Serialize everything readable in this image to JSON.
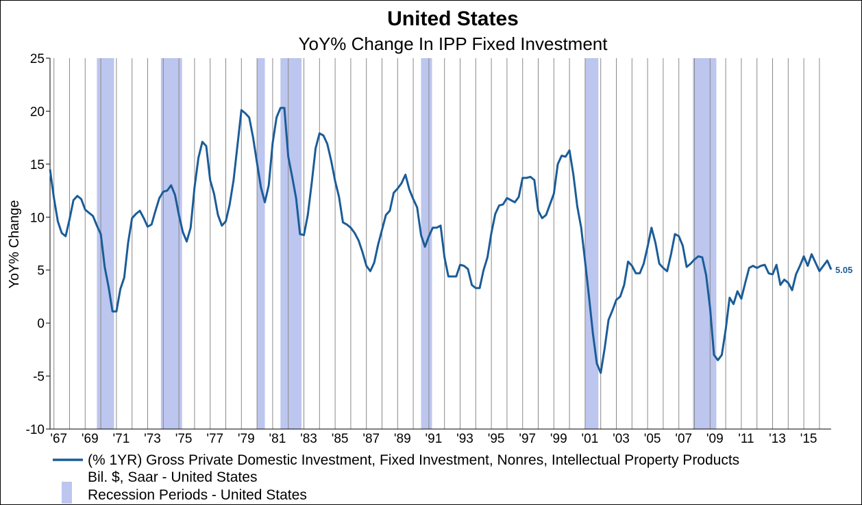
{
  "chart_data": {
    "type": "line",
    "title": "United States",
    "subtitle": "YoY% Change In IPP Fixed Investment",
    "ylabel": "YoY% Change",
    "xlabel": "",
    "ylim": [
      -10,
      25
    ],
    "xlim": [
      1966.75,
      2016.75
    ],
    "yticks": [
      -10,
      -5,
      0,
      5,
      10,
      15,
      20,
      25
    ],
    "xtick_labels": [
      "'67",
      "'69",
      "'71",
      "'73",
      "'75",
      "'77",
      "'79",
      "'81",
      "'83",
      "'85",
      "'87",
      "'89",
      "'91",
      "'93",
      "'95",
      "'97",
      "'99",
      "'01",
      "'03",
      "'05",
      "'07",
      "'09",
      "'11",
      "'13",
      "'15"
    ],
    "grid": "vertical",
    "legend_position": "bottom",
    "colors": {
      "series": "#1b5c98",
      "recession": "#bcc6ee",
      "grid": "#888888"
    },
    "series": [
      {
        "name": "(% 1YR) Gross Private Domestic Investment, Fixed Investment, Nonres, Intellectual Property Products",
        "name_line2": "Bil. $, Saar - United States",
        "end_value_label": "5.05",
        "points": [
          [
            1966.75,
            14.5
          ],
          [
            1967.0,
            11.8
          ],
          [
            1967.25,
            9.6
          ],
          [
            1967.5,
            8.5
          ],
          [
            1967.75,
            8.2
          ],
          [
            1968.0,
            9.8
          ],
          [
            1968.25,
            11.6
          ],
          [
            1968.5,
            12.0
          ],
          [
            1968.75,
            11.7
          ],
          [
            1969.0,
            10.7
          ],
          [
            1969.25,
            10.4
          ],
          [
            1969.5,
            10.1
          ],
          [
            1969.75,
            9.2
          ],
          [
            1970.0,
            8.4
          ],
          [
            1970.25,
            5.3
          ],
          [
            1970.5,
            3.4
          ],
          [
            1970.75,
            1.1
          ],
          [
            1971.0,
            1.1
          ],
          [
            1971.25,
            3.2
          ],
          [
            1971.5,
            4.3
          ],
          [
            1971.75,
            7.6
          ],
          [
            1972.0,
            9.9
          ],
          [
            1972.25,
            10.3
          ],
          [
            1972.5,
            10.6
          ],
          [
            1972.75,
            9.9
          ],
          [
            1973.0,
            9.1
          ],
          [
            1973.25,
            9.3
          ],
          [
            1973.5,
            10.6
          ],
          [
            1973.75,
            11.8
          ],
          [
            1974.0,
            12.4
          ],
          [
            1974.25,
            12.5
          ],
          [
            1974.5,
            13.0
          ],
          [
            1974.75,
            12.1
          ],
          [
            1975.0,
            10.2
          ],
          [
            1975.25,
            8.6
          ],
          [
            1975.5,
            7.7
          ],
          [
            1975.75,
            9.0
          ],
          [
            1976.0,
            12.8
          ],
          [
            1976.25,
            15.6
          ],
          [
            1976.5,
            17.1
          ],
          [
            1976.75,
            16.7
          ],
          [
            1977.0,
            13.5
          ],
          [
            1977.25,
            12.2
          ],
          [
            1977.5,
            10.2
          ],
          [
            1977.75,
            9.2
          ],
          [
            1978.0,
            9.6
          ],
          [
            1978.25,
            11.2
          ],
          [
            1978.5,
            13.5
          ],
          [
            1978.75,
            16.8
          ],
          [
            1979.0,
            20.1
          ],
          [
            1979.25,
            19.8
          ],
          [
            1979.5,
            19.4
          ],
          [
            1979.75,
            17.5
          ],
          [
            1980.0,
            15.1
          ],
          [
            1980.25,
            12.8
          ],
          [
            1980.5,
            11.4
          ],
          [
            1980.75,
            13.0
          ],
          [
            1981.0,
            17.0
          ],
          [
            1981.25,
            19.4
          ],
          [
            1981.5,
            20.3
          ],
          [
            1981.75,
            20.3
          ],
          [
            1982.0,
            15.7
          ],
          [
            1982.25,
            13.8
          ],
          [
            1982.5,
            11.8
          ],
          [
            1982.75,
            8.4
          ],
          [
            1983.0,
            8.3
          ],
          [
            1983.25,
            10.2
          ],
          [
            1983.5,
            13.2
          ],
          [
            1983.75,
            16.5
          ],
          [
            1984.0,
            17.9
          ],
          [
            1984.25,
            17.7
          ],
          [
            1984.5,
            16.9
          ],
          [
            1984.75,
            15.3
          ],
          [
            1985.0,
            13.4
          ],
          [
            1985.25,
            11.9
          ],
          [
            1985.5,
            9.5
          ],
          [
            1985.75,
            9.3
          ],
          [
            1986.0,
            9.0
          ],
          [
            1986.25,
            8.5
          ],
          [
            1986.5,
            7.8
          ],
          [
            1986.75,
            6.7
          ],
          [
            1987.0,
            5.4
          ],
          [
            1987.25,
            4.9
          ],
          [
            1987.5,
            5.7
          ],
          [
            1987.75,
            7.4
          ],
          [
            1988.0,
            8.8
          ],
          [
            1988.25,
            10.2
          ],
          [
            1988.5,
            10.6
          ],
          [
            1988.75,
            12.3
          ],
          [
            1989.0,
            12.7
          ],
          [
            1989.25,
            13.2
          ],
          [
            1989.5,
            14.0
          ],
          [
            1989.75,
            12.6
          ],
          [
            1990.0,
            11.7
          ],
          [
            1990.25,
            10.9
          ],
          [
            1990.5,
            8.3
          ],
          [
            1990.75,
            7.2
          ],
          [
            1991.0,
            8.2
          ],
          [
            1991.25,
            9.0
          ],
          [
            1991.5,
            9.0
          ],
          [
            1991.75,
            9.2
          ],
          [
            1992.0,
            6.2
          ],
          [
            1992.25,
            4.4
          ],
          [
            1992.5,
            4.4
          ],
          [
            1992.75,
            4.4
          ],
          [
            1993.0,
            5.5
          ],
          [
            1993.25,
            5.4
          ],
          [
            1993.5,
            5.1
          ],
          [
            1993.75,
            3.6
          ],
          [
            1994.0,
            3.3
          ],
          [
            1994.25,
            3.3
          ],
          [
            1994.5,
            5.0
          ],
          [
            1994.75,
            6.2
          ],
          [
            1995.0,
            8.5
          ],
          [
            1995.25,
            10.3
          ],
          [
            1995.5,
            11.1
          ],
          [
            1995.75,
            11.2
          ],
          [
            1996.0,
            11.8
          ],
          [
            1996.25,
            11.6
          ],
          [
            1996.5,
            11.4
          ],
          [
            1996.75,
            11.9
          ],
          [
            1997.0,
            13.7
          ],
          [
            1997.25,
            13.7
          ],
          [
            1997.5,
            13.8
          ],
          [
            1997.75,
            13.5
          ],
          [
            1998.0,
            10.6
          ],
          [
            1998.25,
            9.9
          ],
          [
            1998.5,
            10.2
          ],
          [
            1998.75,
            11.2
          ],
          [
            1999.0,
            12.2
          ],
          [
            1999.25,
            15.0
          ],
          [
            1999.5,
            15.8
          ],
          [
            1999.75,
            15.7
          ],
          [
            2000.0,
            16.3
          ],
          [
            2000.25,
            14.0
          ],
          [
            2000.5,
            11.0
          ],
          [
            2000.75,
            9.0
          ],
          [
            2001.0,
            5.8
          ],
          [
            2001.25,
            2.5
          ],
          [
            2001.5,
            -1.0
          ],
          [
            2001.75,
            -3.8
          ],
          [
            2002.0,
            -4.7
          ],
          [
            2002.25,
            -2.4
          ],
          [
            2002.5,
            0.3
          ],
          [
            2002.75,
            1.2
          ],
          [
            2003.0,
            2.2
          ],
          [
            2003.25,
            2.5
          ],
          [
            2003.5,
            3.6
          ],
          [
            2003.75,
            5.8
          ],
          [
            2004.0,
            5.4
          ],
          [
            2004.25,
            4.7
          ],
          [
            2004.5,
            4.7
          ],
          [
            2004.75,
            5.6
          ],
          [
            2005.0,
            7.2
          ],
          [
            2005.25,
            9.0
          ],
          [
            2005.5,
            7.6
          ],
          [
            2005.75,
            5.6
          ],
          [
            2006.0,
            5.2
          ],
          [
            2006.25,
            4.9
          ],
          [
            2006.5,
            6.5
          ],
          [
            2006.75,
            8.4
          ],
          [
            2007.0,
            8.2
          ],
          [
            2007.25,
            7.3
          ],
          [
            2007.5,
            5.3
          ],
          [
            2007.75,
            5.6
          ],
          [
            2008.0,
            6.0
          ],
          [
            2008.25,
            6.3
          ],
          [
            2008.5,
            6.2
          ],
          [
            2008.75,
            4.5
          ],
          [
            2009.0,
            1.4
          ],
          [
            2009.25,
            -3.0
          ],
          [
            2009.5,
            -3.5
          ],
          [
            2009.75,
            -3.0
          ],
          [
            2010.0,
            -0.6
          ],
          [
            2010.25,
            2.4
          ],
          [
            2010.5,
            1.8
          ],
          [
            2010.75,
            3.0
          ],
          [
            2011.0,
            2.3
          ],
          [
            2011.25,
            3.8
          ],
          [
            2011.5,
            5.2
          ],
          [
            2011.75,
            5.4
          ],
          [
            2012.0,
            5.2
          ],
          [
            2012.25,
            5.4
          ],
          [
            2012.5,
            5.5
          ],
          [
            2012.75,
            4.7
          ],
          [
            2013.0,
            4.6
          ],
          [
            2013.25,
            5.5
          ],
          [
            2013.5,
            3.6
          ],
          [
            2013.75,
            4.1
          ],
          [
            2014.0,
            3.8
          ],
          [
            2014.25,
            3.1
          ],
          [
            2014.5,
            4.6
          ],
          [
            2014.75,
            5.4
          ],
          [
            2015.0,
            6.3
          ],
          [
            2015.25,
            5.4
          ],
          [
            2015.5,
            6.5
          ],
          [
            2015.75,
            5.7
          ],
          [
            2016.0,
            4.9
          ],
          [
            2016.25,
            5.4
          ],
          [
            2016.5,
            5.9
          ],
          [
            2016.75,
            5.05
          ]
        ]
      }
    ],
    "recessions_label": "Recession Periods - United States",
    "recessions": [
      [
        1969.75,
        1970.85
      ],
      [
        1973.85,
        1975.2
      ],
      [
        1980.0,
        1980.5
      ],
      [
        1981.5,
        1982.85
      ],
      [
        1990.5,
        1991.2
      ],
      [
        2001.0,
        2001.85
      ],
      [
        2007.9,
        2009.4
      ]
    ]
  }
}
